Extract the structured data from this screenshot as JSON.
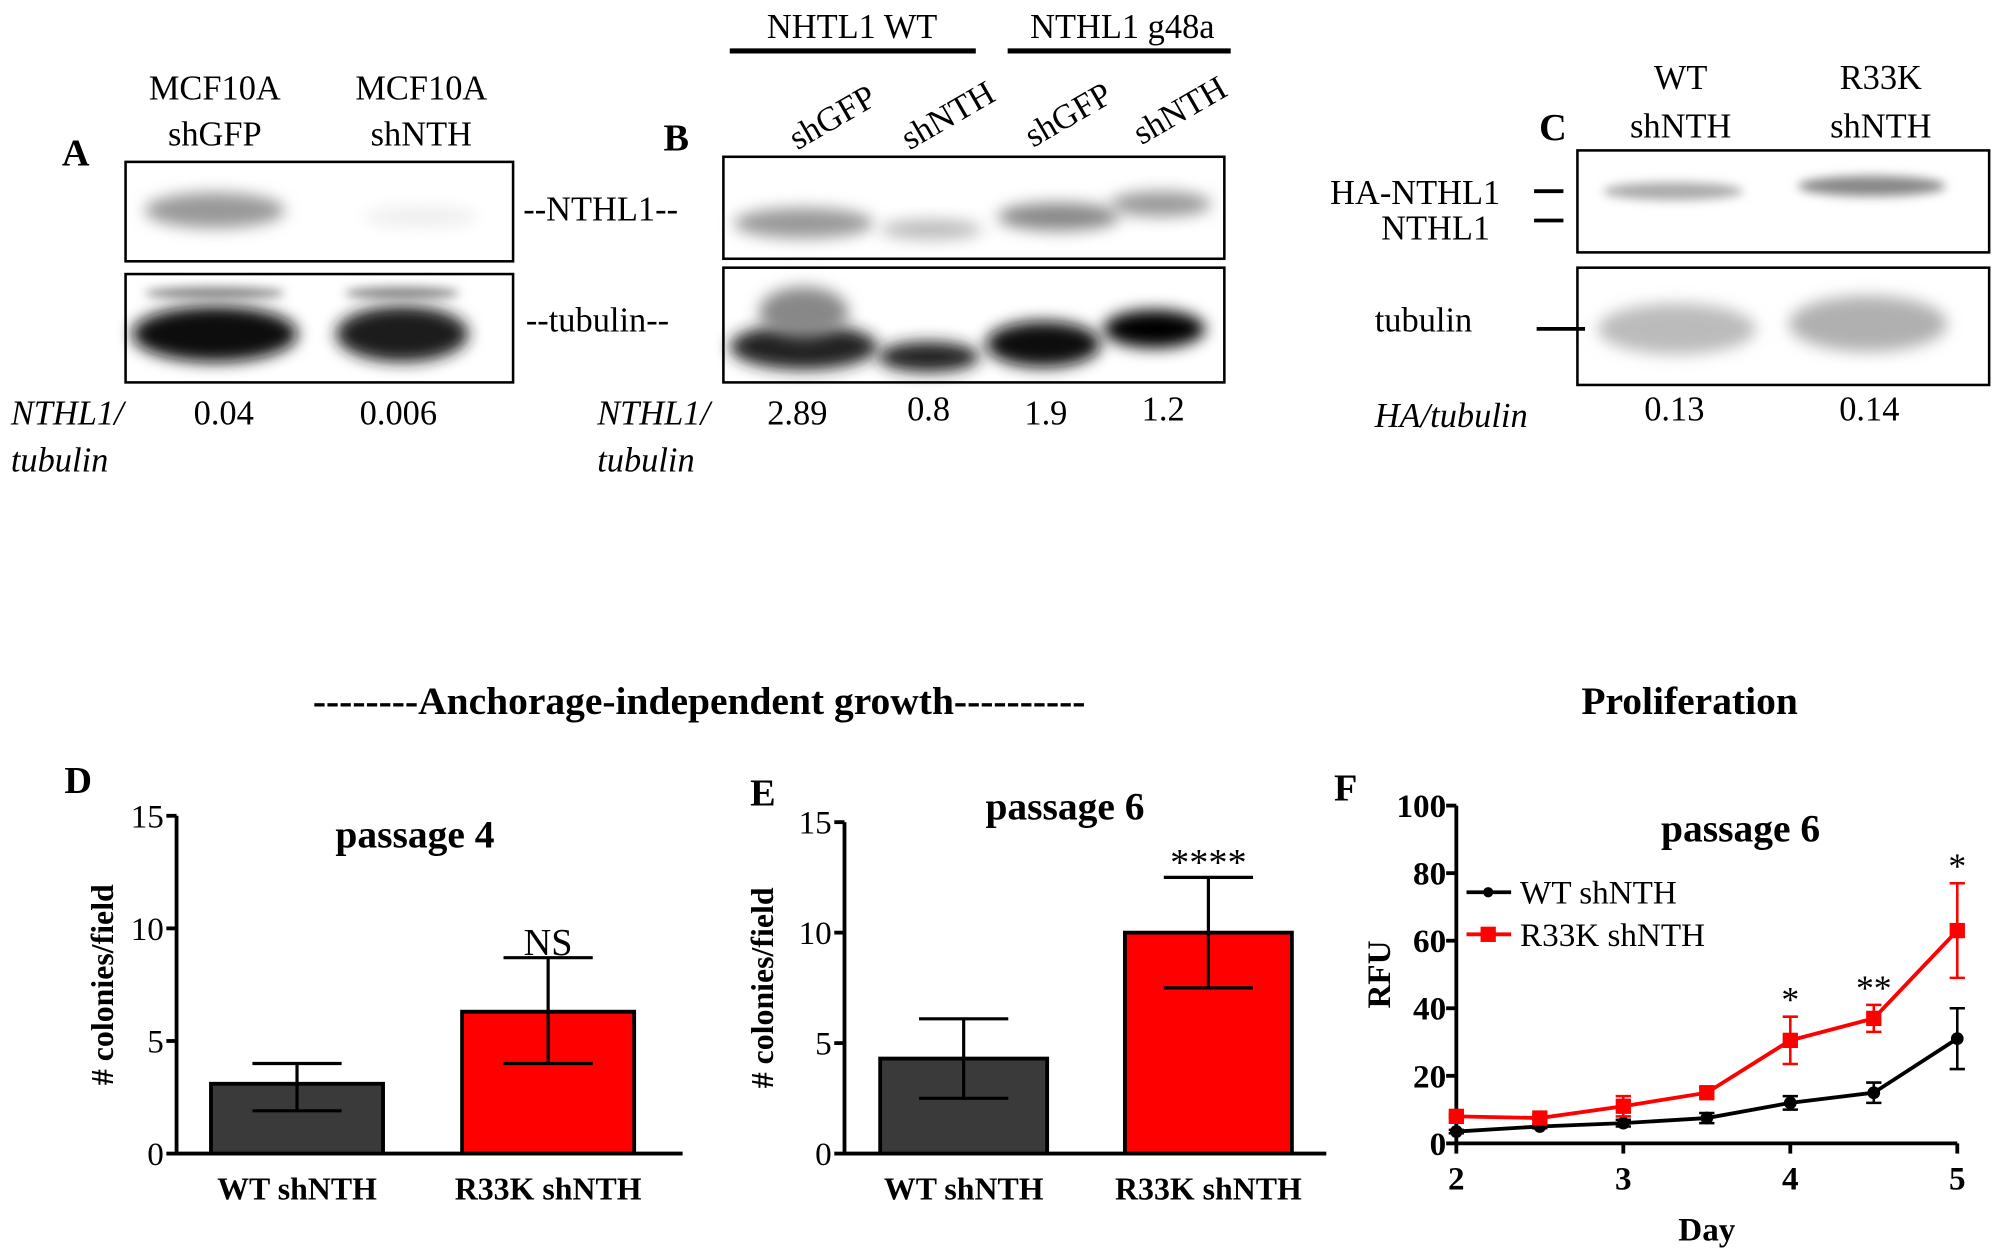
{
  "panel_a": {
    "label": "A",
    "lanes": [
      {
        "line1": "MCF10A",
        "line2": "shGFP"
      },
      {
        "line1": "MCF10A",
        "line2": "shNTH"
      }
    ],
    "band_labels": [
      "--NTHL1--",
      "--tubulin--"
    ],
    "ratio_label_1": "NTHL1/",
    "ratio_label_2": "tubulin",
    "ratios": [
      "0.04",
      "0.006"
    ]
  },
  "panel_b": {
    "label": "B",
    "groups": [
      "NHTL1 WT",
      "NTHL1 g48a"
    ],
    "lanes": [
      "shGFP",
      "shNTH",
      "shGFP",
      "shNTH"
    ],
    "ratio_label_1": "NTHL1/",
    "ratio_label_2": "tubulin",
    "ratios": [
      "2.89",
      "0.8",
      "1.9",
      "1.2"
    ]
  },
  "panel_c": {
    "label": "C",
    "lanes": [
      {
        "line1": "WT",
        "line2": "shNTH"
      },
      {
        "line1": "R33K",
        "line2": "shNTH"
      }
    ],
    "band_labels": [
      "HA-NTHL1",
      "NTHL1",
      "tubulin"
    ],
    "ratio_label": "HA/tubulin",
    "ratios": [
      "0.13",
      "0.14"
    ]
  },
  "section_titles": {
    "anchorage": "--------Anchorage-independent  growth----------",
    "proliferation": "Proliferation"
  },
  "chart_data": [
    {
      "panel": "D",
      "type": "bar",
      "title": "passage 4",
      "ylabel": "# colonies/field",
      "ylim": [
        0,
        15
      ],
      "yticks": [
        "0",
        "5",
        "10",
        "15"
      ],
      "categories": [
        "WT  shNTH",
        "R33K  shNTH"
      ],
      "values": [
        3.1,
        6.3
      ],
      "error": [
        [
          1.9,
          4.0
        ],
        [
          4.0,
          8.7
        ]
      ],
      "colors": [
        "#3a3a3a",
        "#ff0000"
      ],
      "annotations": [
        "",
        "NS"
      ]
    },
    {
      "panel": "E",
      "type": "bar",
      "title": "passage 6",
      "ylabel": "# colonies/field",
      "ylim": [
        0,
        15
      ],
      "yticks": [
        "0",
        "5",
        "10",
        "15"
      ],
      "categories": [
        "WT shNTH",
        "R33K shNTH"
      ],
      "values": [
        4.3,
        10.0
      ],
      "error": [
        [
          2.5,
          6.1
        ],
        [
          7.5,
          12.5
        ]
      ],
      "colors": [
        "#3a3a3a",
        "#ff0000"
      ],
      "annotations": [
        "",
        "****"
      ]
    },
    {
      "panel": "F",
      "type": "line",
      "title": "passage 6",
      "xlabel": "Day",
      "ylabel": "RFU",
      "xlim": [
        2,
        5
      ],
      "ylim": [
        0,
        100
      ],
      "xticks": [
        "2",
        "3",
        "4",
        "5"
      ],
      "yticks": [
        "0",
        "20",
        "40",
        "60",
        "80",
        "100"
      ],
      "legend": "top-left",
      "x": [
        2,
        2.5,
        3,
        3.5,
        4,
        4.5,
        5
      ],
      "series": [
        {
          "name": "WT shNTH",
          "color": "#000000",
          "marker": "circle",
          "values": [
            3.5,
            5,
            6,
            7.5,
            12,
            15,
            31
          ],
          "error": [
            0.5,
            0.5,
            1,
            1.5,
            2,
            3,
            9
          ]
        },
        {
          "name": "R33K shNTH",
          "color": "#ff0000",
          "marker": "square",
          "values": [
            8,
            7.5,
            11,
            15,
            30.5,
            37,
            63
          ],
          "error": [
            0.5,
            0.5,
            3,
            1.5,
            7,
            4,
            14
          ]
        }
      ],
      "annotations": [
        {
          "x": 4,
          "text": "*"
        },
        {
          "x": 4.5,
          "text": "**"
        },
        {
          "x": 5,
          "text": "*"
        }
      ]
    }
  ]
}
